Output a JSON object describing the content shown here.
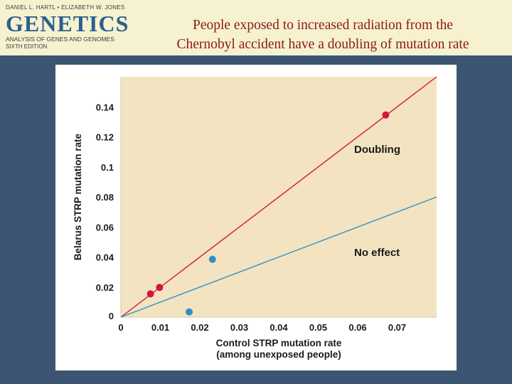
{
  "header": {
    "authors": "DANIEL L. HARTL • ELIZABETH W. JONES",
    "book_title": "GENETICS",
    "subtitle": "ANALYSIS OF GENES AND GENOMES",
    "edition": "SIXTH EDITION",
    "slide_title_line1": "People exposed to increased radiation from the",
    "slide_title_line2": "Chernobyl accident have a doubling of mutation rate"
  },
  "colors": {
    "background": "#3b5573",
    "header_bg": "#f6f1cf",
    "title_red": "#8b1a1a",
    "plot_bg": "#f3e3c0",
    "doubling": "#d2163e",
    "no_effect": "#2f8fc6"
  },
  "chart_data": {
    "type": "scatter",
    "title": "",
    "xlabel_line1": "Control STRP mutation rate",
    "xlabel_line2": "(among unexposed people)",
    "ylabel": "Belarus STRP mutation rate",
    "xlim": [
      0,
      0.08
    ],
    "ylim": [
      0,
      0.16
    ],
    "x_ticks": [
      0,
      0.01,
      0.02,
      0.03,
      0.04,
      0.05,
      0.06,
      0.07
    ],
    "x_tick_labels": [
      "0",
      "0.01",
      "0.02",
      "0.03",
      "0.04",
      "0.05",
      "0.06",
      "0.07"
    ],
    "y_ticks": [
      0,
      0.02,
      0.04,
      0.06,
      0.08,
      0.1,
      0.12,
      0.14
    ],
    "y_tick_labels": [
      "0",
      "0.02",
      "0.04",
      "0.06",
      "0.08",
      "0.1",
      "0.12",
      "0.14"
    ],
    "reference_lines": [
      {
        "name": "Doubling",
        "slope": 2
      },
      {
        "name": "No effect",
        "slope": 1
      }
    ],
    "series": [
      {
        "name": "Doubling",
        "points": [
          {
            "x": 0.0075,
            "y": 0.0155
          },
          {
            "x": 0.0098,
            "y": 0.0198
          },
          {
            "x": 0.0671,
            "y": 0.1346
          }
        ]
      },
      {
        "name": "No effect",
        "points": [
          {
            "x": 0.0173,
            "y": 0.0035
          },
          {
            "x": 0.0232,
            "y": 0.0385
          }
        ]
      }
    ]
  }
}
